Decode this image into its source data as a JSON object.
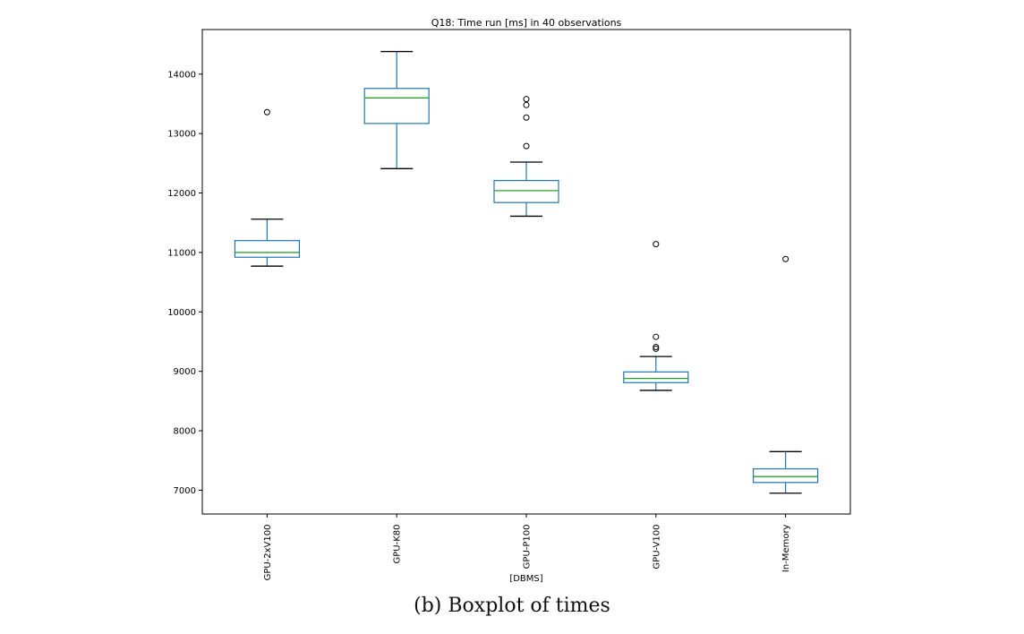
{
  "caption": "(b) Boxplot of times",
  "colors": {
    "box": "#1f77b4",
    "median": "#2ca02c",
    "whisker_cap": "#000000",
    "flier": "#000000",
    "axes": "#000000"
  },
  "chart_data": {
    "type": "boxplot",
    "title": "Q18: Time run [ms] in 40 observations",
    "xlabel": "[DBMS]",
    "ylabel": "",
    "ylim": [
      6600,
      14750
    ],
    "yticks": [
      7000,
      8000,
      9000,
      10000,
      11000,
      12000,
      13000,
      14000
    ],
    "ytick_labels": [
      "7000",
      "8000",
      "9000",
      "10000",
      "11000",
      "12000",
      "13000",
      "14000"
    ],
    "grid": false,
    "categories": [
      "GPU-2xV100",
      "GPU-K80",
      "GPU-P100",
      "GPU-V100",
      "In-Memory"
    ],
    "boxes": [
      {
        "label": "GPU-2xV100",
        "whislo": 10770,
        "q1": 10920,
        "med": 11000,
        "q3": 11200,
        "whishi": 11560,
        "fliers": [
          13360
        ]
      },
      {
        "label": "GPU-K80",
        "whislo": 12410,
        "q1": 13170,
        "med": 13600,
        "q3": 13760,
        "whishi": 14380,
        "fliers": []
      },
      {
        "label": "GPU-P100",
        "whislo": 11610,
        "q1": 11840,
        "med": 12040,
        "q3": 12210,
        "whishi": 12520,
        "fliers": [
          12790,
          13270,
          13480,
          13580
        ]
      },
      {
        "label": "GPU-V100",
        "whislo": 8680,
        "q1": 8810,
        "med": 8880,
        "q3": 8990,
        "whishi": 9250,
        "fliers": [
          9380,
          9410,
          9580,
          11140
        ]
      },
      {
        "label": "In-Memory",
        "whislo": 6950,
        "q1": 7130,
        "med": 7230,
        "q3": 7360,
        "whishi": 7650,
        "fliers": [
          10890
        ]
      }
    ]
  }
}
